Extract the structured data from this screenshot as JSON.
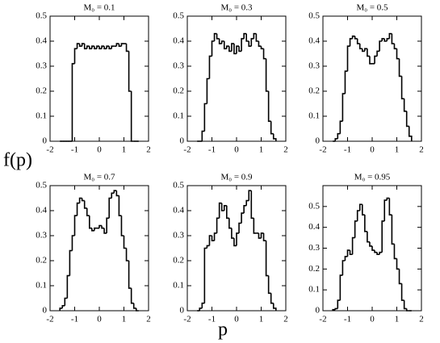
{
  "xlabel": "p",
  "ylabel": "f(p)",
  "chart_data": [
    {
      "type": "histogram",
      "title": "M₀ = 0.1",
      "color": "#000000",
      "xlim": [
        -2,
        2
      ],
      "xticks": [
        -2,
        -1,
        0,
        1,
        2
      ],
      "ylim": [
        0,
        0.5
      ],
      "yticks": [
        0,
        0.1,
        0.2,
        0.3,
        0.4,
        0.5
      ],
      "bins": [
        -1.6,
        -1.5,
        -1.4,
        -1.3,
        -1.2,
        -1.1,
        -1.0,
        -0.9,
        -0.8,
        -0.7,
        -0.6,
        -0.5,
        -0.4,
        -0.3,
        -0.2,
        -0.1,
        0,
        0.1,
        0.2,
        0.3,
        0.4,
        0.5,
        0.6,
        0.7,
        0.8,
        0.9,
        1.0,
        1.1,
        1.2,
        1.3,
        1.4,
        1.5,
        1.6
      ],
      "values": [
        0,
        0,
        0,
        0,
        0,
        0.31,
        0.37,
        0.39,
        0.38,
        0.39,
        0.37,
        0.38,
        0.37,
        0.38,
        0.37,
        0.38,
        0.37,
        0.38,
        0.37,
        0.38,
        0.37,
        0.38,
        0.38,
        0.39,
        0.38,
        0.39,
        0.39,
        0.36,
        0.2,
        0,
        0,
        0
      ]
    },
    {
      "type": "histogram",
      "title": "M₀ = 0.3",
      "color": "#000000",
      "xlim": [
        -2,
        2
      ],
      "xticks": [
        -2,
        -1,
        0,
        1,
        2
      ],
      "ylim": [
        0,
        0.5
      ],
      "yticks": [
        0,
        0.1,
        0.2,
        0.3,
        0.4,
        0.5
      ],
      "bins": [
        -1.6,
        -1.5,
        -1.4,
        -1.3,
        -1.2,
        -1.1,
        -1.0,
        -0.9,
        -0.8,
        -0.7,
        -0.6,
        -0.5,
        -0.4,
        -0.3,
        -0.2,
        -0.1,
        0,
        0.1,
        0.2,
        0.3,
        0.4,
        0.5,
        0.6,
        0.7,
        0.8,
        0.9,
        1.0,
        1.1,
        1.2,
        1.3,
        1.4,
        1.5,
        1.6
      ],
      "values": [
        0,
        0,
        0.04,
        0.15,
        0.25,
        0.34,
        0.4,
        0.43,
        0.41,
        0.39,
        0.4,
        0.37,
        0.38,
        0.36,
        0.39,
        0.35,
        0.38,
        0.36,
        0.41,
        0.43,
        0.4,
        0.38,
        0.41,
        0.43,
        0.4,
        0.38,
        0.37,
        0.33,
        0.2,
        0.08,
        0.03,
        0.01
      ]
    },
    {
      "type": "histogram",
      "title": "M₀ = 0.5",
      "color": "#000000",
      "xlim": [
        -2,
        2
      ],
      "xticks": [
        -2,
        -1,
        0,
        1,
        2
      ],
      "ylim": [
        0,
        0.5
      ],
      "yticks": [
        0,
        0.1,
        0.2,
        0.3,
        0.4,
        0.5
      ],
      "bins": [
        -1.6,
        -1.5,
        -1.4,
        -1.3,
        -1.2,
        -1.1,
        -1.0,
        -0.9,
        -0.8,
        -0.7,
        -0.6,
        -0.5,
        -0.4,
        -0.3,
        -0.2,
        -0.1,
        0,
        0.1,
        0.2,
        0.3,
        0.4,
        0.5,
        0.6,
        0.7,
        0.8,
        0.9,
        1.0,
        1.1,
        1.2,
        1.3,
        1.4,
        1.5,
        1.6
      ],
      "values": [
        0,
        0.01,
        0.03,
        0.08,
        0.19,
        0.28,
        0.38,
        0.41,
        0.42,
        0.41,
        0.39,
        0.37,
        0.36,
        0.37,
        0.34,
        0.31,
        0.31,
        0.34,
        0.36,
        0.4,
        0.41,
        0.4,
        0.41,
        0.43,
        0.39,
        0.37,
        0.33,
        0.26,
        0.17,
        0.12,
        0.06,
        0.02
      ]
    },
    {
      "type": "histogram",
      "title": "M₀ = 0.7",
      "color": "#000000",
      "xlim": [
        -2,
        2
      ],
      "xticks": [
        -2,
        -1,
        0,
        1,
        2
      ],
      "ylim": [
        0,
        0.5
      ],
      "yticks": [
        0,
        0.1,
        0.2,
        0.3,
        0.4,
        0.5
      ],
      "bins": [
        -1.6,
        -1.5,
        -1.4,
        -1.3,
        -1.2,
        -1.1,
        -1.0,
        -0.9,
        -0.8,
        -0.7,
        -0.6,
        -0.5,
        -0.4,
        -0.3,
        -0.2,
        -0.1,
        0,
        0.1,
        0.2,
        0.3,
        0.4,
        0.5,
        0.6,
        0.7,
        0.8,
        0.9,
        1.0,
        1.1,
        1.2,
        1.3,
        1.4,
        1.5,
        1.6
      ],
      "values": [
        0.01,
        0.02,
        0.05,
        0.14,
        0.24,
        0.3,
        0.38,
        0.43,
        0.45,
        0.44,
        0.41,
        0.38,
        0.33,
        0.32,
        0.33,
        0.33,
        0.34,
        0.33,
        0.31,
        0.37,
        0.45,
        0.47,
        0.48,
        0.46,
        0.38,
        0.3,
        0.25,
        0.2,
        0.09,
        0.03,
        0.01,
        0
      ]
    },
    {
      "type": "histogram",
      "title": "M₀ = 0.9",
      "color": "#000000",
      "xlim": [
        -2,
        2
      ],
      "xticks": [
        -2,
        -1,
        0,
        1,
        2
      ],
      "ylim": [
        0,
        0.5
      ],
      "yticks": [
        0,
        0.1,
        0.2,
        0.3,
        0.4,
        0.5
      ],
      "bins": [
        -1.6,
        -1.5,
        -1.4,
        -1.3,
        -1.2,
        -1.1,
        -1.0,
        -0.9,
        -0.8,
        -0.7,
        -0.6,
        -0.5,
        -0.4,
        -0.3,
        -0.2,
        -0.1,
        0,
        0.1,
        0.2,
        0.3,
        0.4,
        0.5,
        0.6,
        0.7,
        0.8,
        0.9,
        1.0,
        1.1,
        1.2,
        1.3,
        1.4,
        1.5,
        1.6
      ],
      "values": [
        0,
        0.01,
        0.03,
        0.25,
        0.26,
        0.3,
        0.28,
        0.31,
        0.37,
        0.43,
        0.4,
        0.42,
        0.37,
        0.33,
        0.29,
        0.26,
        0.31,
        0.35,
        0.39,
        0.42,
        0.44,
        0.48,
        0.37,
        0.31,
        0.31,
        0.29,
        0.31,
        0.28,
        0.14,
        0.07,
        0.03,
        0.01
      ]
    },
    {
      "type": "histogram",
      "title": "M₀ = 0.95",
      "color": "#000000",
      "xlim": [
        -2,
        2
      ],
      "xticks": [
        -2,
        -1,
        0,
        1,
        2
      ],
      "ylim": [
        0,
        0.6
      ],
      "yticks": [
        0,
        0.1,
        0.2,
        0.3,
        0.4,
        0.5
      ],
      "bins": [
        -1.6,
        -1.5,
        -1.4,
        -1.3,
        -1.2,
        -1.1,
        -1.0,
        -0.9,
        -0.8,
        -0.7,
        -0.6,
        -0.5,
        -0.4,
        -0.3,
        -0.2,
        -0.1,
        0,
        0.1,
        0.2,
        0.3,
        0.4,
        0.5,
        0.6,
        0.7,
        0.8,
        0.9,
        1.0,
        1.1,
        1.2,
        1.3,
        1.4,
        1.5,
        1.6
      ],
      "values": [
        0.005,
        0.01,
        0.05,
        0.17,
        0.24,
        0.26,
        0.29,
        0.27,
        0.35,
        0.43,
        0.48,
        0.51,
        0.46,
        0.38,
        0.33,
        0.31,
        0.29,
        0.28,
        0.27,
        0.28,
        0.43,
        0.53,
        0.54,
        0.46,
        0.32,
        0.25,
        0.2,
        0.13,
        0.05,
        0.01,
        0,
        0
      ]
    }
  ]
}
